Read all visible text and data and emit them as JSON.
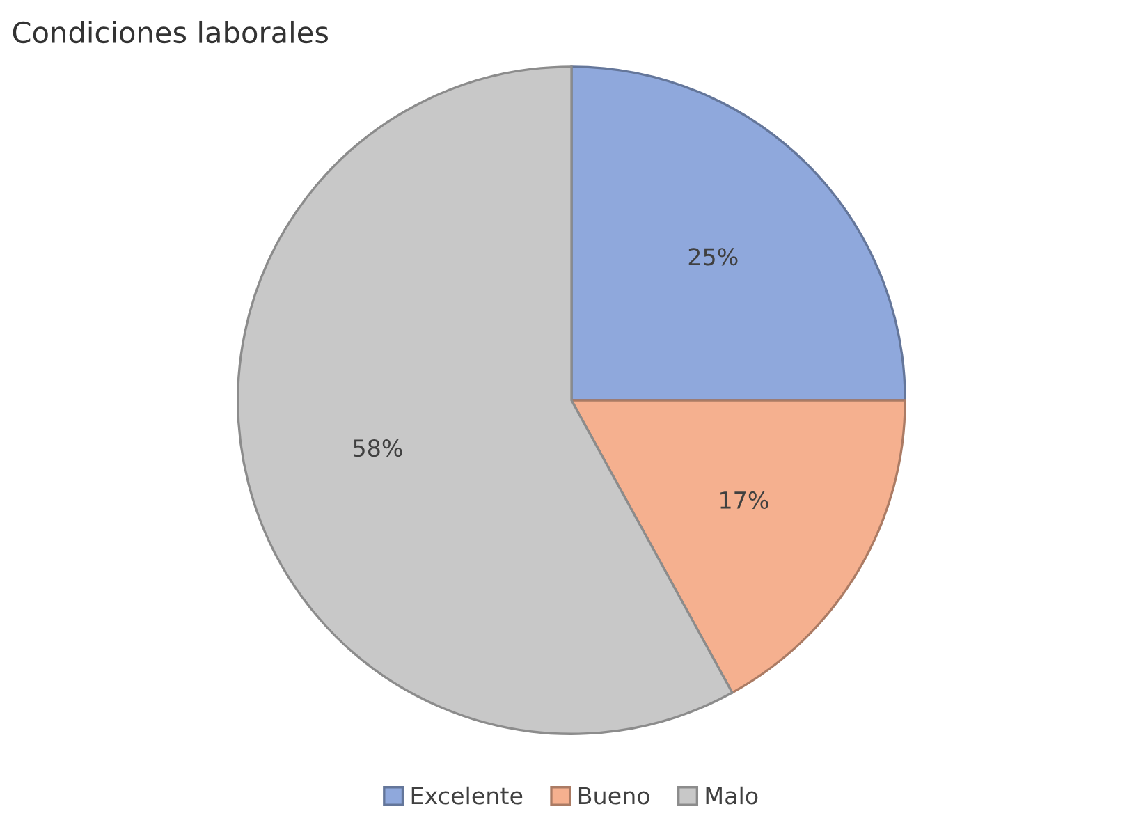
{
  "chart_data": {
    "type": "pie",
    "title": "Condiciones laborales",
    "categories": [
      "Excelente",
      "Bueno",
      "Malo"
    ],
    "values": [
      25,
      17,
      58
    ],
    "colors": [
      "#8fa8dc",
      "#f5b08f",
      "#c8c8c8"
    ],
    "value_labels": [
      "25%",
      "17%",
      "58%"
    ],
    "legend": "bottom"
  }
}
